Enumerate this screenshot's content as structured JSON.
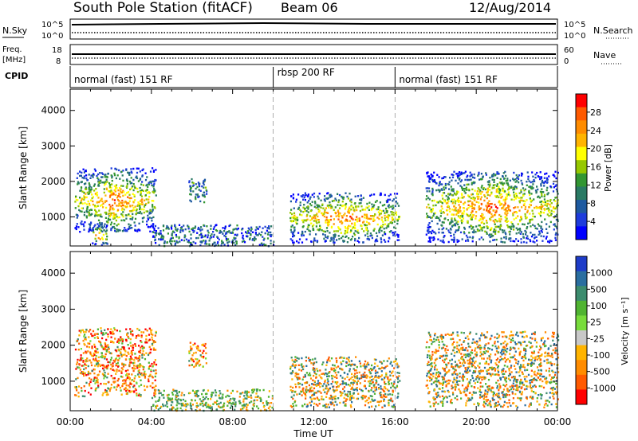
{
  "header": {
    "station": "South Pole Station (fitACF)",
    "beam": "Beam 06",
    "date": "12/Aug/2014"
  },
  "nsky": {
    "label": "N.Sky",
    "ticks": [
      "10^5",
      "10^0"
    ],
    "right_label": "N.Search",
    "right_ticks": [
      "10^5",
      "10^0"
    ]
  },
  "freq": {
    "label_line1": "Freq.",
    "label_line2": "[MHz]",
    "ticks": [
      "18",
      "8"
    ],
    "right_label": "Nave",
    "right_ticks": [
      "60",
      "0"
    ]
  },
  "cpid": {
    "label": "CPID",
    "segments": [
      {
        "start": 0,
        "end": 10,
        "text": "normal (fast) 151 RF"
      },
      {
        "start": 10,
        "end": 16,
        "text": "rbsp 200 RF"
      },
      {
        "start": 16,
        "end": 24,
        "text": "normal (fast) 151 RF"
      }
    ]
  },
  "chart_data": [
    {
      "type": "heatmap",
      "title": "",
      "xlabel": "Time UT",
      "ylabel": "Slant Range [km]",
      "xlim": [
        0,
        24
      ],
      "ylim": [
        180,
        4600
      ],
      "x_ticks": [
        "00:00",
        "04:00",
        "08:00",
        "12:00",
        "16:00",
        "20:00",
        "00:00"
      ],
      "y_ticks": [
        "1000",
        "2000",
        "3000",
        "4000"
      ],
      "y_tick_values": [
        1000,
        2000,
        3000,
        4000
      ],
      "colorbar": {
        "label": "Power [dB]",
        "ticks": [
          "28",
          "24",
          "20",
          "16",
          "12",
          "8",
          "4"
        ],
        "colors": [
          "#ff0000",
          "#ff5a00",
          "#ff8c00",
          "#ffb400",
          "#ffff00",
          "#96c800",
          "#329632",
          "#2a7a64",
          "#1e5aa0",
          "#1e3cdc",
          "#0000ff"
        ]
      },
      "scatter_regions": [
        {
          "t0": 0.2,
          "t1": 4.2,
          "r0": 600,
          "r1": 2400,
          "level": "high"
        },
        {
          "t0": 1.0,
          "t1": 1.8,
          "r0": 200,
          "r1": 800,
          "level": "high"
        },
        {
          "t0": 5.8,
          "t1": 6.7,
          "r0": 1400,
          "r1": 2100,
          "level": "mid"
        },
        {
          "t0": 4.0,
          "t1": 10.0,
          "r0": 200,
          "r1": 800,
          "level": "low"
        },
        {
          "t0": 10.8,
          "t1": 16.2,
          "r0": 300,
          "r1": 1700,
          "level": "high"
        },
        {
          "t0": 17.5,
          "t1": 24.0,
          "r0": 300,
          "r1": 2300,
          "level": "high"
        }
      ]
    },
    {
      "type": "heatmap",
      "title": "",
      "xlabel": "Time UT",
      "ylabel": "Slant Range [km]",
      "xlim": [
        0,
        24
      ],
      "ylim": [
        180,
        4600
      ],
      "x_ticks": [
        "00:00",
        "04:00",
        "08:00",
        "12:00",
        "16:00",
        "20:00",
        "00:00"
      ],
      "y_ticks": [
        "1000",
        "2000",
        "3000",
        "4000"
      ],
      "y_tick_values": [
        1000,
        2000,
        3000,
        4000
      ],
      "colorbar": {
        "label": "Velocity [m s⁻¹]",
        "ticks": [
          "1000",
          "500",
          "100",
          "25",
          "-25",
          "-100",
          "-500",
          "-1000"
        ],
        "colors": [
          "#1e3cc8",
          "#2a6ea0",
          "#3c8c6e",
          "#50b432",
          "#78dc3c",
          "#c8c8c8",
          "#ffb400",
          "#ff8c00",
          "#ff5a00",
          "#ff0000"
        ]
      },
      "scatter_regions": [
        {
          "t0": 0.2,
          "t1": 4.2,
          "r0": 600,
          "r1": 2500,
          "level": "neg"
        },
        {
          "t0": 5.8,
          "t1": 6.7,
          "r0": 1400,
          "r1": 2100,
          "level": "neg"
        },
        {
          "t0": 4.0,
          "t1": 10.0,
          "r0": 200,
          "r1": 800,
          "level": "pos"
        },
        {
          "t0": 10.8,
          "t1": 16.2,
          "r0": 300,
          "r1": 1700,
          "level": "mix"
        },
        {
          "t0": 17.5,
          "t1": 24.0,
          "r0": 300,
          "r1": 2400,
          "level": "mix"
        }
      ]
    }
  ]
}
